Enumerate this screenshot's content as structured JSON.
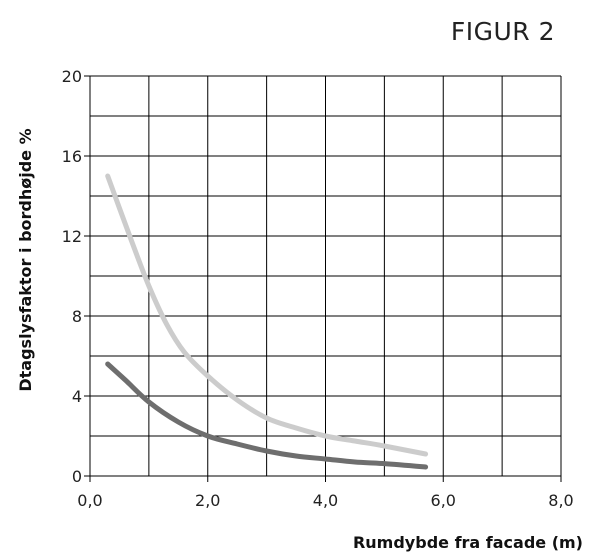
{
  "figure_label": "FIGUR 2",
  "chart_data": {
    "type": "line",
    "xlabel": "Rumdybde fra facade (m)",
    "ylabel": "Dtagslysfaktor i bordhøjde  %",
    "xlim": [
      0,
      8
    ],
    "ylim": [
      0,
      20
    ],
    "x_ticks": [
      0,
      2,
      4,
      6,
      8
    ],
    "x_tick_labels": [
      "0,0",
      "2,0",
      "4,0",
      "6,0",
      "8,0"
    ],
    "y_ticks": [
      0,
      4,
      8,
      12,
      16,
      20
    ],
    "y_tick_labels": [
      "0",
      "4",
      "8",
      "12",
      "16",
      "20"
    ],
    "grid": true,
    "legend": "none",
    "series": [
      {
        "color": "#cccccc",
        "x": [
          0.3,
          0.5,
          0.7,
          1.0,
          1.3,
          1.6,
          2.0,
          2.5,
          3.0,
          3.5,
          4.0,
          4.5,
          5.0,
          5.7
        ],
        "y": [
          15.0,
          13.4,
          11.8,
          9.5,
          7.6,
          6.2,
          5.0,
          3.8,
          2.9,
          2.4,
          2.0,
          1.75,
          1.5,
          1.1
        ]
      },
      {
        "color": "#6e6e6e",
        "x": [
          0.3,
          0.6,
          1.0,
          1.5,
          2.0,
          2.5,
          3.0,
          3.5,
          4.0,
          4.5,
          5.0,
          5.7
        ],
        "y": [
          5.6,
          4.8,
          3.7,
          2.7,
          2.0,
          1.6,
          1.25,
          1.0,
          0.85,
          0.7,
          0.62,
          0.45
        ]
      }
    ]
  }
}
